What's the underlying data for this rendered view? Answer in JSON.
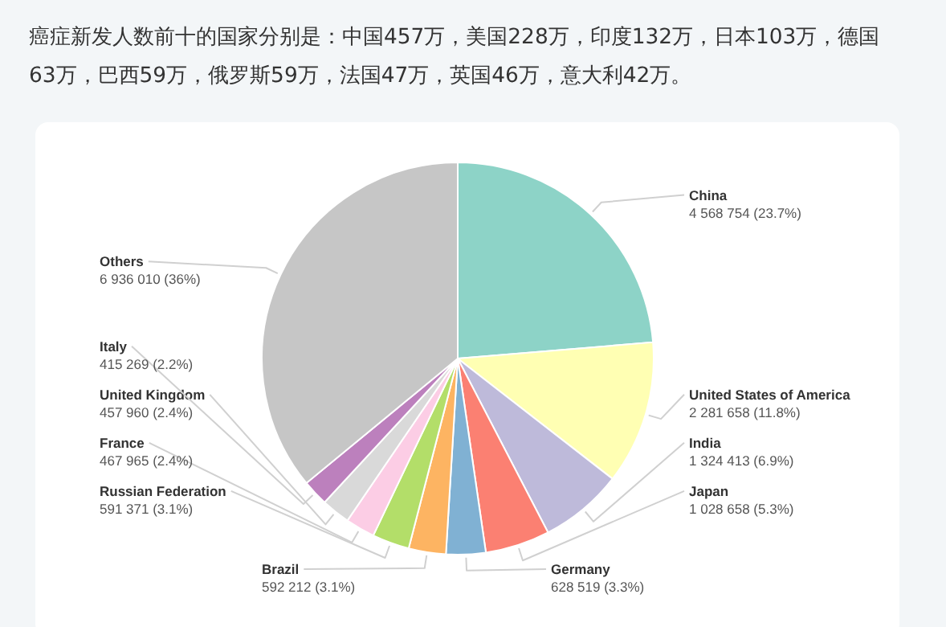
{
  "chart_data": {
    "type": "pie",
    "title": "癌症新发人数前十的国家分别是：中国457万，美国228万，印度132万，日本103万，德国63万，巴西59万，俄罗斯59万，法国47万，英国46万，意大利42万。",
    "categories": [
      "China",
      "United States of America",
      "India",
      "Japan",
      "Germany",
      "Brazil",
      "Russian Federation",
      "France",
      "United Kingdom",
      "Italy",
      "Others"
    ],
    "values": [
      4568754,
      2281658,
      1324413,
      1028658,
      628519,
      592212,
      591371,
      467965,
      457960,
      415269,
      6936010
    ],
    "value_labels": [
      "4 568 754 (23.7%)",
      "2 281 658 (11.8%)",
      "1 324 413 (6.9%)",
      "1 028 658 (5.3%)",
      "628 519 (3.3%)",
      "592 212 (3.1%)",
      "591 371 (3.1%)",
      "467 965 (2.4%)",
      "457 960 (2.4%)",
      "415 269 (2.2%)",
      "6 936 010 (36%)"
    ],
    "colors": [
      "#8dd3c7",
      "#ffffb3",
      "#bebada",
      "#fb8072",
      "#80b1d3",
      "#fdb462",
      "#b3de69",
      "#fccde5",
      "#d9d9d9",
      "#bc80bd",
      "#c6c6c6"
    ]
  }
}
